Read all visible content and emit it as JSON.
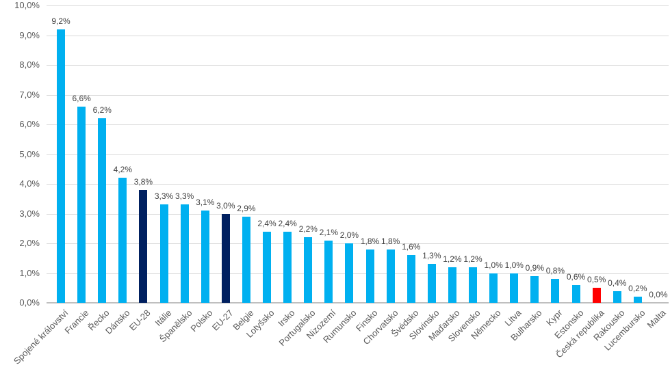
{
  "chart_data": {
    "type": "bar",
    "title": "",
    "xlabel": "",
    "ylabel": "",
    "ylim": [
      0,
      10
    ],
    "grid": true,
    "legend": "none",
    "categories": [
      "Spojené království",
      "Francie",
      "Řecko",
      "Dánsko",
      "EU-28",
      "Itálie",
      "Španělsko",
      "Polsko",
      "EU-27",
      "Belgie",
      "Lotyšsko",
      "Irsko",
      "Portugalsko",
      "Nizozemí",
      "Rumunsko",
      "Finsko",
      "Chorvatsko",
      "Švédsko",
      "Slovinsko",
      "Maďarsko",
      "Slovensko",
      "Německo",
      "Litva",
      "Bulharsko",
      "Kypr",
      "Estonsko",
      "Česká republika",
      "Rakousko",
      "Lucembursko",
      "Malta"
    ],
    "values": [
      9.2,
      6.6,
      6.2,
      4.2,
      3.8,
      3.3,
      3.3,
      3.1,
      3.0,
      2.9,
      2.4,
      2.4,
      2.2,
      2.1,
      2.0,
      1.8,
      1.8,
      1.6,
      1.3,
      1.2,
      1.2,
      1.0,
      1.0,
      0.9,
      0.8,
      0.6,
      0.5,
      0.4,
      0.2,
      0.0
    ],
    "value_labels": [
      "9,2%",
      "6,6%",
      "6,2%",
      "4,2%",
      "3,8%",
      "3,3%",
      "3,3%",
      "3,1%",
      "3,0%",
      "2,9%",
      "2,4%",
      "2,4%",
      "2,2%",
      "2,1%",
      "2,0%",
      "1,8%",
      "1,8%",
      "1,6%",
      "1,3%",
      "1,2%",
      "1,2%",
      "1,0%",
      "1,0%",
      "0,9%",
      "0,8%",
      "0,6%",
      "0,5%",
      "0,4%",
      "0,2%",
      "0,0%"
    ],
    "y_ticks": [
      "0,0%",
      "1,0%",
      "2,0%",
      "3,0%",
      "4,0%",
      "5,0%",
      "6,0%",
      "7,0%",
      "8,0%",
      "9,0%",
      "10,0%"
    ],
    "highlight_dark_categories": [
      "EU-28",
      "EU-27"
    ],
    "highlight_red_categories": [
      "Česká republika"
    ]
  },
  "colors": {
    "bar_default": "#00B0F0",
    "bar_dark": "#002060",
    "bar_red": "#FF0000",
    "gridline": "#D9D9D9",
    "axis_line": "#BFBFBF",
    "axis_text": "#595959",
    "data_label": "#404040",
    "background": "#FFFFFF"
  }
}
